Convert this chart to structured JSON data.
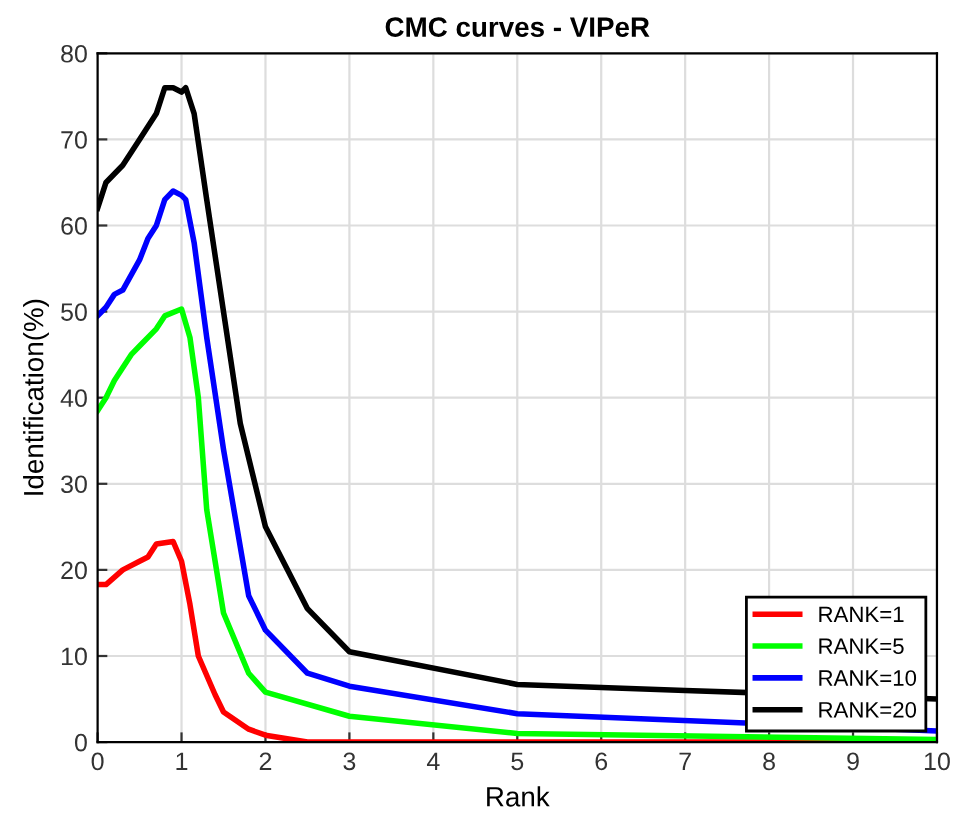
{
  "chart_data": {
    "type": "line",
    "title": "CMC curves - VIPeR",
    "xlabel": "Rank",
    "ylabel": "Identification(%)",
    "xlim": [
      0,
      10
    ],
    "xticks": [
      0,
      1,
      2,
      3,
      4,
      5,
      6,
      7,
      8,
      9,
      10
    ],
    "ylim": [
      0,
      80
    ],
    "yticks": [
      0,
      10,
      20,
      30,
      40,
      50,
      60,
      70,
      80
    ],
    "grid": true,
    "legend": "bottom right",
    "line_style": "solid",
    "marker": "none",
    "series": [
      {
        "name": "RANK=1",
        "color": "#ff0000",
        "x": [
          0,
          0.1,
          0.3,
          0.5,
          0.6,
          0.7,
          0.9,
          1.0,
          1.1,
          1.2,
          1.4,
          1.5,
          1.8,
          2.0,
          2.5,
          10
        ],
        "values": [
          18.3,
          18.3,
          20,
          21,
          21.5,
          23,
          23.3,
          21,
          16,
          10,
          5.5,
          3.5,
          1.5,
          0.8,
          0,
          0
        ]
      },
      {
        "name": "RANK=5",
        "color": "#00ff00",
        "x": [
          0,
          0.1,
          0.2,
          0.4,
          0.5,
          0.7,
          0.8,
          1.0,
          1.1,
          1.2,
          1.3,
          1.5,
          1.8,
          2.0,
          3,
          5,
          10
        ],
        "values": [
          38.5,
          40,
          42,
          45,
          46,
          48,
          49.5,
          50.3,
          47,
          40,
          27,
          15,
          8,
          5.8,
          3,
          1,
          0.3
        ]
      },
      {
        "name": "RANK=10",
        "color": "#0000ff",
        "x": [
          0,
          0.1,
          0.2,
          0.3,
          0.5,
          0.6,
          0.7,
          0.8,
          0.9,
          1.0,
          1.05,
          1.15,
          1.3,
          1.5,
          1.8,
          2.0,
          2.5,
          3,
          5,
          10
        ],
        "values": [
          49.5,
          50.5,
          52,
          52.5,
          56,
          58.5,
          60,
          63,
          64,
          63.5,
          63,
          58,
          47,
          34,
          17,
          13,
          8,
          6.5,
          3.3,
          1.3
        ]
      },
      {
        "name": "RANK=20",
        "color": "#000000",
        "x": [
          0,
          0.1,
          0.3,
          0.5,
          0.7,
          0.8,
          0.9,
          1.0,
          1.05,
          1.15,
          1.3,
          1.5,
          1.7,
          2.0,
          2.5,
          3,
          5,
          7,
          10
        ],
        "values": [
          62,
          65,
          67,
          70,
          73,
          76,
          76,
          75.5,
          76,
          73,
          63,
          50,
          37,
          25,
          15.5,
          10.5,
          6.7,
          6,
          5
        ]
      }
    ]
  }
}
